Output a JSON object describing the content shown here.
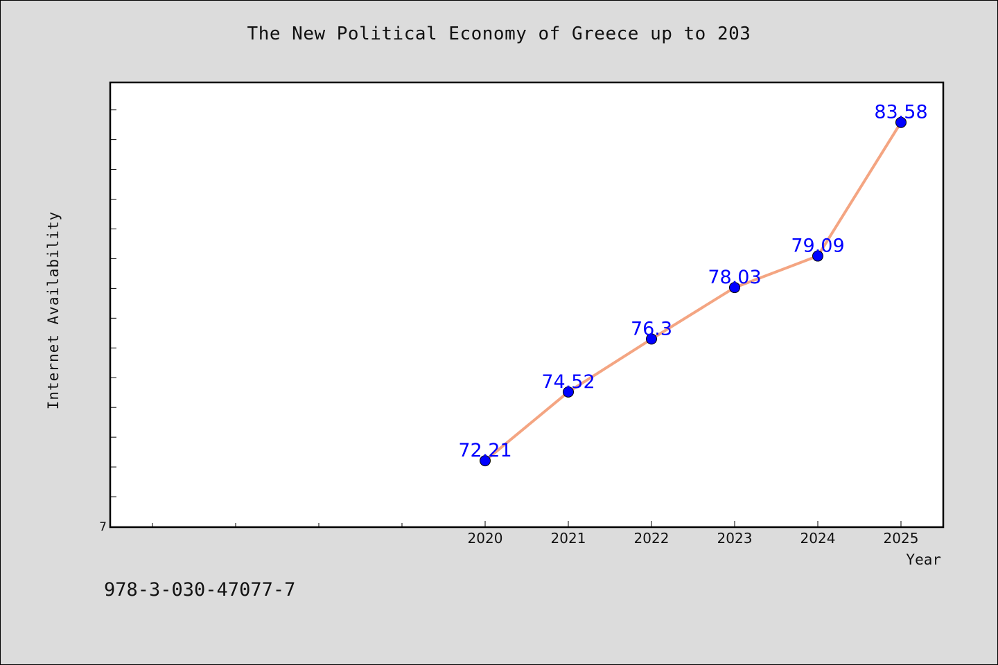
{
  "chart_data": {
    "type": "line",
    "title": "The New Political Economy of Greece up to 203",
    "xlabel": "Year",
    "ylabel": "Internet Availability",
    "x": [
      2020,
      2021,
      2022,
      2023,
      2024,
      2025
    ],
    "x_tick_labels": [
      "2020",
      "2021",
      "2022",
      "2023",
      "2024",
      "2025"
    ],
    "xlim": [
      2015.5,
      2025.5
    ],
    "ylim": [
      70,
      84.9
    ],
    "y_tick_labels": [
      "7"
    ],
    "series": [
      {
        "values": [
          72.21,
          74.52,
          76.3,
          78.03,
          79.09,
          83.58
        ],
        "data_labels": [
          "72.21",
          "74.52",
          "76.3",
          "78.03",
          "79.09",
          "83.58"
        ],
        "line_color": "#f4a582",
        "marker_color": "#0000ff",
        "label_color": "#0000ff"
      }
    ],
    "grid": false,
    "legend": "none"
  },
  "footnote": "978-3-030-47077-7",
  "colors": {
    "background": "#dcdcdc",
    "plot_background": "#ffffff",
    "axis": "#000000"
  }
}
